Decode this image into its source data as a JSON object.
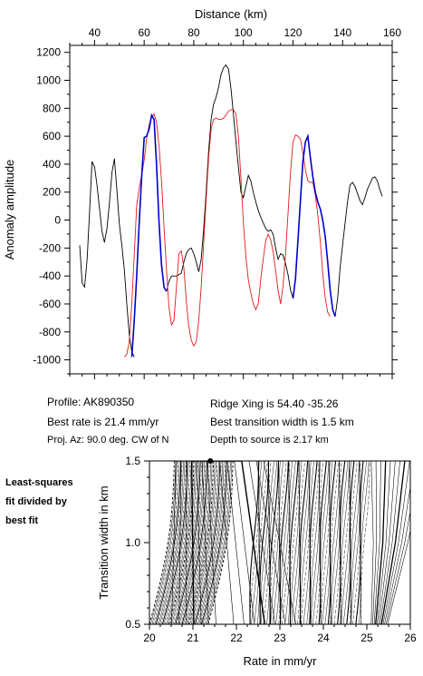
{
  "chart_data": [
    {
      "type": "line",
      "xlabel": "Distance (km)",
      "ylabel": "Anomaly amplitude",
      "xlim": [
        30,
        160
      ],
      "ylim": [
        -1100,
        1250
      ],
      "x_ticks": [
        40,
        60,
        80,
        100,
        120,
        140,
        160
      ],
      "y_ticks": [
        -1000,
        -800,
        -600,
        -400,
        -200,
        0,
        200,
        400,
        600,
        800,
        1000,
        1200
      ],
      "x_axis_position": "top",
      "grid": false,
      "series": [
        {
          "color": "#000000",
          "points": [
            [
              34,
              -180
            ],
            [
              35,
              -450
            ],
            [
              36,
              -480
            ],
            [
              37,
              -280
            ],
            [
              38,
              60
            ],
            [
              39,
              420
            ],
            [
              40,
              380
            ],
            [
              41,
              250
            ],
            [
              42,
              80
            ],
            [
              43,
              -80
            ],
            [
              44,
              -160
            ],
            [
              45,
              -60
            ],
            [
              46,
              120
            ],
            [
              47,
              340
            ],
            [
              48,
              440
            ],
            [
              49,
              220
            ],
            [
              50,
              -30
            ],
            [
              51,
              -180
            ],
            [
              52,
              -350
            ],
            [
              53,
              -600
            ],
            [
              54,
              -820
            ],
            [
              55,
              -940
            ],
            [
              56,
              -980
            ]
          ]
        },
        {
          "color": "#0000cc",
          "points": [
            [
              55,
              -980
            ],
            [
              56,
              -720
            ],
            [
              57,
              -400
            ],
            [
              58,
              -20
            ],
            [
              59,
              310
            ],
            [
              60,
              590
            ],
            [
              61,
              600
            ],
            [
              62,
              650
            ],
            [
              63,
              750
            ],
            [
              64,
              720
            ],
            [
              65,
              400
            ],
            [
              66,
              -20
            ],
            [
              67,
              -320
            ],
            [
              68,
              -480
            ],
            [
              69,
              -510
            ]
          ]
        },
        {
          "color": "#000000",
          "points": [
            [
              69,
              -510
            ],
            [
              70,
              -440
            ],
            [
              71,
              -400
            ],
            [
              73,
              -400
            ],
            [
              75,
              -380
            ],
            [
              76,
              -300
            ],
            [
              77,
              -240
            ],
            [
              78,
              -210
            ],
            [
              79,
              -200
            ],
            [
              80,
              -240
            ],
            [
              81,
              -300
            ],
            [
              82,
              -370
            ],
            [
              83,
              -280
            ],
            [
              84,
              -60
            ],
            [
              85,
              200
            ],
            [
              86,
              500
            ],
            [
              87,
              720
            ],
            [
              88,
              830
            ],
            [
              89,
              880
            ],
            [
              90,
              950
            ],
            [
              91,
              1040
            ],
            [
              92,
              1090
            ],
            [
              93,
              1110
            ],
            [
              94,
              1080
            ],
            [
              95,
              940
            ],
            [
              96,
              760
            ],
            [
              97,
              560
            ],
            [
              98,
              380
            ],
            [
              99,
              200
            ],
            [
              100,
              160
            ],
            [
              101,
              240
            ],
            [
              102,
              320
            ],
            [
              103,
              280
            ],
            [
              104,
              200
            ],
            [
              105,
              130
            ],
            [
              106,
              70
            ],
            [
              107,
              20
            ],
            [
              108,
              -20
            ],
            [
              109,
              -60
            ],
            [
              110,
              -80
            ],
            [
              111,
              -70
            ],
            [
              112,
              -100
            ],
            [
              113,
              -200
            ],
            [
              114,
              -280
            ],
            [
              115,
              -240
            ],
            [
              116,
              -250
            ],
            [
              117,
              -310
            ],
            [
              118,
              -390
            ],
            [
              119,
              -500
            ],
            [
              120,
              -560
            ]
          ]
        },
        {
          "color": "#0000cc",
          "points": [
            [
              120,
              -560
            ],
            [
              121,
              -420
            ],
            [
              122,
              -150
            ],
            [
              123,
              140
            ],
            [
              124,
              420
            ],
            [
              125,
              560
            ],
            [
              126,
              600
            ],
            [
              127,
              450
            ],
            [
              128,
              310
            ],
            [
              129,
              200
            ],
            [
              130,
              130
            ],
            [
              131,
              80
            ],
            [
              132,
              0
            ],
            [
              133,
              -120
            ],
            [
              134,
              -300
            ],
            [
              135,
              -500
            ],
            [
              136,
              -640
            ],
            [
              137,
              -690
            ]
          ]
        },
        {
          "color": "#000000",
          "points": [
            [
              137,
              -690
            ],
            [
              138,
              -560
            ],
            [
              139,
              -340
            ],
            [
              140,
              -180
            ],
            [
              141,
              -20
            ],
            [
              142,
              130
            ],
            [
              143,
              250
            ],
            [
              144,
              270
            ],
            [
              145,
              240
            ],
            [
              146,
              190
            ],
            [
              147,
              140
            ],
            [
              148,
              110
            ],
            [
              149,
              160
            ],
            [
              150,
              220
            ],
            [
              151,
              260
            ],
            [
              152,
              300
            ],
            [
              153,
              310
            ],
            [
              154,
              280
            ],
            [
              155,
              220
            ],
            [
              156,
              170
            ]
          ]
        },
        {
          "color": "#e31a1c",
          "points": [
            [
              52,
              -980
            ],
            [
              53,
              -960
            ],
            [
              54,
              -870
            ],
            [
              55,
              -600
            ],
            [
              56,
              -250
            ],
            [
              57,
              100
            ],
            [
              58,
              230
            ],
            [
              59,
              320
            ],
            [
              60,
              430
            ],
            [
              61,
              580
            ],
            [
              62,
              680
            ],
            [
              63,
              740
            ],
            [
              64,
              760
            ],
            [
              65,
              700
            ],
            [
              66,
              530
            ],
            [
              67,
              280
            ],
            [
              68,
              -50
            ],
            [
              69,
              -350
            ],
            [
              70,
              -620
            ],
            [
              71,
              -750
            ],
            [
              72,
              -720
            ],
            [
              73,
              -480
            ],
            [
              74,
              -240
            ],
            [
              75,
              -220
            ],
            [
              76,
              -340
            ],
            [
              77,
              -580
            ],
            [
              78,
              -760
            ],
            [
              79,
              -860
            ],
            [
              80,
              -900
            ],
            [
              81,
              -870
            ],
            [
              82,
              -720
            ],
            [
              83,
              -480
            ],
            [
              84,
              -160
            ],
            [
              85,
              150
            ],
            [
              86,
              450
            ],
            [
              87,
              650
            ],
            [
              88,
              720
            ],
            [
              89,
              730
            ],
            [
              90,
              720
            ],
            [
              91,
              720
            ],
            [
              92,
              730
            ],
            [
              93,
              750
            ],
            [
              94,
              780
            ],
            [
              95,
              790
            ],
            [
              96,
              790
            ],
            [
              97,
              760
            ],
            [
              98,
              600
            ],
            [
              99,
              300
            ],
            [
              100,
              -20
            ],
            [
              101,
              -260
            ],
            [
              102,
              -430
            ],
            [
              103,
              -520
            ],
            [
              104,
              -600
            ],
            [
              105,
              -640
            ],
            [
              106,
              -600
            ],
            [
              107,
              -420
            ],
            [
              108,
              -280
            ],
            [
              109,
              -150
            ],
            [
              110,
              -100
            ],
            [
              111,
              -140
            ],
            [
              112,
              -230
            ],
            [
              113,
              -360
            ],
            [
              114,
              -500
            ],
            [
              115,
              -600
            ],
            [
              116,
              -470
            ],
            [
              117,
              -250
            ],
            [
              118,
              50
            ],
            [
              119,
              340
            ],
            [
              120,
              560
            ],
            [
              121,
              610
            ],
            [
              122,
              600
            ],
            [
              123,
              580
            ],
            [
              124,
              480
            ],
            [
              125,
              360
            ],
            [
              126,
              280
            ],
            [
              127,
              270
            ],
            [
              128,
              270
            ],
            [
              129,
              180
            ],
            [
              130,
              40
            ],
            [
              131,
              -150
            ],
            [
              132,
              -380
            ],
            [
              133,
              -560
            ],
            [
              134,
              -660
            ],
            [
              135,
              -690
            ]
          ]
        }
      ]
    },
    {
      "type": "contour",
      "xlabel": "Rate in mm/yr",
      "ylabel": "Transition width in km",
      "xlim": [
        20,
        26
      ],
      "ylim": [
        0.5,
        1.5
      ],
      "x_ticks": [
        20,
        21,
        22,
        23,
        24,
        25,
        26
      ],
      "y_ticks": [
        0.5,
        1.0,
        1.5
      ],
      "best_fit_marker": [
        21.4,
        1.5
      ]
    }
  ],
  "info": {
    "profile": "Profile: AK890350",
    "best_rate": "Best rate is 21.4 mm/yr",
    "proj_az": "Proj. Az: 90.0 deg. CW of N",
    "ridge_xing": "Ridge Xing is 54.40 -35.26",
    "best_transition": "Best transition width is 1.5 km",
    "depth": "Depth to source is   2.17 km"
  },
  "side_label": [
    "Least-squares",
    "fit divided by",
    "best fit"
  ]
}
